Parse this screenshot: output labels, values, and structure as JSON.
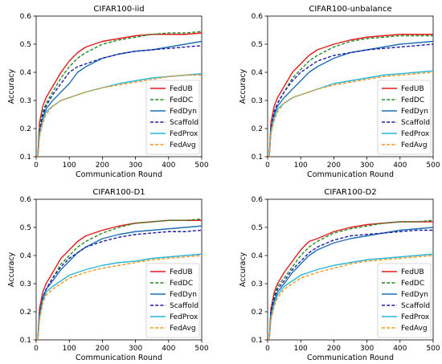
{
  "chart_data": [
    {
      "type": "line",
      "title": "CIFAR100-iid",
      "xlabel": "Communication Round",
      "ylabel": "Accuracy",
      "xlim": [
        0,
        500
      ],
      "ylim": [
        0.1,
        0.6
      ],
      "xticks": [
        "0",
        "100",
        "200",
        "300",
        "400",
        "500"
      ],
      "yticks": [
        "0.1",
        "0.2",
        "0.3",
        "0.4",
        "0.5",
        "0.6"
      ],
      "legend_position": "lower-right",
      "x": [
        5,
        10,
        20,
        30,
        50,
        75,
        100,
        125,
        150,
        200,
        250,
        300,
        350,
        400,
        450,
        500
      ],
      "series": [
        {
          "name": "FedUB",
          "color": "#e31a1c",
          "style": "solid",
          "values": [
            0.1,
            0.22,
            0.28,
            0.31,
            0.35,
            0.4,
            0.44,
            0.47,
            0.49,
            0.51,
            0.52,
            0.53,
            0.535,
            0.535,
            0.535,
            0.54
          ]
        },
        {
          "name": "FedDC",
          "color": "#238b23",
          "style": "dashed",
          "values": [
            0.1,
            0.2,
            0.26,
            0.29,
            0.33,
            0.38,
            0.42,
            0.45,
            0.47,
            0.5,
            0.515,
            0.525,
            0.535,
            0.54,
            0.54,
            0.545
          ]
        },
        {
          "name": "FedDyn",
          "color": "#1f6fb4",
          "style": "solid",
          "values": [
            0.1,
            0.18,
            0.24,
            0.27,
            0.3,
            0.33,
            0.36,
            0.4,
            0.42,
            0.45,
            0.465,
            0.475,
            0.48,
            0.49,
            0.5,
            0.51
          ]
        },
        {
          "name": "Scaffold",
          "color": "#1a1aa6",
          "style": "dashed",
          "values": [
            0.1,
            0.19,
            0.25,
            0.28,
            0.32,
            0.36,
            0.4,
            0.42,
            0.43,
            0.45,
            0.465,
            0.475,
            0.48,
            0.485,
            0.49,
            0.495
          ]
        },
        {
          "name": "FedProx",
          "color": "#29b6d8",
          "style": "solid",
          "values": [
            0.1,
            0.18,
            0.23,
            0.26,
            0.28,
            0.3,
            0.31,
            0.32,
            0.33,
            0.345,
            0.36,
            0.37,
            0.38,
            0.385,
            0.39,
            0.395
          ]
        },
        {
          "name": "FedAvg",
          "color": "#f5961e",
          "style": "dashed",
          "values": [
            0.1,
            0.17,
            0.22,
            0.25,
            0.28,
            0.3,
            0.31,
            0.32,
            0.33,
            0.345,
            0.355,
            0.365,
            0.375,
            0.385,
            0.39,
            0.39
          ]
        }
      ]
    },
    {
      "type": "line",
      "title": "CIFAR100-unbalance",
      "xlabel": "Communication Round",
      "ylabel": "Accuracy",
      "xlim": [
        0,
        500
      ],
      "ylim": [
        0.1,
        0.6
      ],
      "xticks": [
        "0",
        "100",
        "200",
        "300",
        "400",
        "500"
      ],
      "yticks": [
        "0.1",
        "0.2",
        "0.3",
        "0.4",
        "0.5",
        "0.6"
      ],
      "legend_position": "lower-right",
      "x": [
        5,
        10,
        20,
        30,
        50,
        75,
        100,
        125,
        150,
        200,
        250,
        300,
        350,
        400,
        450,
        500
      ],
      "series": [
        {
          "name": "FedUB",
          "color": "#e31a1c",
          "style": "solid",
          "values": [
            0.1,
            0.22,
            0.28,
            0.31,
            0.35,
            0.4,
            0.43,
            0.46,
            0.48,
            0.5,
            0.515,
            0.525,
            0.53,
            0.535,
            0.535,
            0.535
          ]
        },
        {
          "name": "FedDC",
          "color": "#238b23",
          "style": "dashed",
          "values": [
            0.1,
            0.2,
            0.26,
            0.29,
            0.33,
            0.38,
            0.41,
            0.44,
            0.46,
            0.49,
            0.51,
            0.52,
            0.525,
            0.53,
            0.53,
            0.53
          ]
        },
        {
          "name": "FedDyn",
          "color": "#1f6fb4",
          "style": "solid",
          "values": [
            0.1,
            0.19,
            0.25,
            0.28,
            0.31,
            0.34,
            0.37,
            0.4,
            0.42,
            0.45,
            0.47,
            0.48,
            0.49,
            0.5,
            0.505,
            0.51
          ]
        },
        {
          "name": "Scaffold",
          "color": "#1a1aa6",
          "style": "dashed",
          "values": [
            0.1,
            0.2,
            0.26,
            0.29,
            0.33,
            0.37,
            0.4,
            0.42,
            0.44,
            0.46,
            0.47,
            0.48,
            0.485,
            0.49,
            0.495,
            0.5
          ]
        },
        {
          "name": "FedProx",
          "color": "#29b6d8",
          "style": "solid",
          "values": [
            0.1,
            0.19,
            0.24,
            0.27,
            0.29,
            0.31,
            0.32,
            0.33,
            0.34,
            0.36,
            0.37,
            0.38,
            0.39,
            0.395,
            0.4,
            0.405
          ]
        },
        {
          "name": "FedAvg",
          "color": "#f5961e",
          "style": "dashed",
          "values": [
            0.1,
            0.18,
            0.23,
            0.26,
            0.29,
            0.31,
            0.32,
            0.33,
            0.34,
            0.355,
            0.365,
            0.375,
            0.385,
            0.39,
            0.395,
            0.4
          ]
        }
      ]
    },
    {
      "type": "line",
      "title": "CIFAR100-D1",
      "xlabel": "Communication Round",
      "ylabel": "Accuracy",
      "xlim": [
        0,
        500
      ],
      "ylim": [
        0.1,
        0.6
      ],
      "xticks": [
        "0",
        "100",
        "200",
        "300",
        "400",
        "500"
      ],
      "yticks": [
        "0.1",
        "0.2",
        "0.3",
        "0.4",
        "0.5",
        "0.6"
      ],
      "legend_position": "lower-right",
      "x": [
        5,
        10,
        20,
        30,
        50,
        75,
        100,
        125,
        150,
        200,
        250,
        300,
        350,
        400,
        450,
        500
      ],
      "series": [
        {
          "name": "FedUB",
          "color": "#e31a1c",
          "style": "solid",
          "values": [
            0.1,
            0.21,
            0.27,
            0.3,
            0.34,
            0.39,
            0.42,
            0.45,
            0.47,
            0.49,
            0.505,
            0.515,
            0.52,
            0.525,
            0.525,
            0.525
          ]
        },
        {
          "name": "FedDC",
          "color": "#238b23",
          "style": "dashed",
          "values": [
            0.1,
            0.19,
            0.25,
            0.28,
            0.32,
            0.37,
            0.4,
            0.43,
            0.45,
            0.48,
            0.5,
            0.515,
            0.52,
            0.525,
            0.525,
            0.53
          ]
        },
        {
          "name": "FedDyn",
          "color": "#1f6fb4",
          "style": "solid",
          "values": [
            0.1,
            0.19,
            0.25,
            0.28,
            0.31,
            0.35,
            0.38,
            0.41,
            0.43,
            0.46,
            0.475,
            0.485,
            0.49,
            0.495,
            0.5,
            0.505
          ]
        },
        {
          "name": "Scaffold",
          "color": "#1a1aa6",
          "style": "dashed",
          "values": [
            0.1,
            0.19,
            0.25,
            0.28,
            0.32,
            0.36,
            0.39,
            0.41,
            0.43,
            0.45,
            0.465,
            0.475,
            0.48,
            0.485,
            0.485,
            0.49
          ]
        },
        {
          "name": "FedProx",
          "color": "#29b6d8",
          "style": "solid",
          "values": [
            0.1,
            0.18,
            0.24,
            0.27,
            0.29,
            0.31,
            0.33,
            0.34,
            0.35,
            0.365,
            0.375,
            0.38,
            0.39,
            0.395,
            0.4,
            0.405
          ]
        },
        {
          "name": "FedAvg",
          "color": "#f5961e",
          "style": "dashed",
          "values": [
            0.1,
            0.17,
            0.23,
            0.26,
            0.28,
            0.3,
            0.32,
            0.33,
            0.34,
            0.355,
            0.365,
            0.375,
            0.385,
            0.39,
            0.395,
            0.4
          ]
        }
      ]
    },
    {
      "type": "line",
      "title": "CIFAR100-D2",
      "xlabel": "Communication Round",
      "ylabel": "Accuracy",
      "xlim": [
        0,
        500
      ],
      "ylim": [
        0.1,
        0.6
      ],
      "xticks": [
        "0",
        "100",
        "200",
        "300",
        "400",
        "500"
      ],
      "yticks": [
        "0.1",
        "0.2",
        "0.3",
        "0.4",
        "0.5",
        "0.6"
      ],
      "legend_position": "lower-right",
      "x": [
        5,
        10,
        20,
        30,
        50,
        75,
        100,
        125,
        150,
        200,
        250,
        300,
        350,
        400,
        450,
        500
      ],
      "series": [
        {
          "name": "FedUB",
          "color": "#e31a1c",
          "style": "solid",
          "values": [
            0.1,
            0.21,
            0.27,
            0.3,
            0.34,
            0.38,
            0.42,
            0.45,
            0.46,
            0.485,
            0.5,
            0.51,
            0.515,
            0.52,
            0.52,
            0.52
          ]
        },
        {
          "name": "FedDC",
          "color": "#238b23",
          "style": "dashed",
          "values": [
            0.1,
            0.2,
            0.26,
            0.29,
            0.32,
            0.36,
            0.4,
            0.43,
            0.45,
            0.48,
            0.495,
            0.505,
            0.515,
            0.52,
            0.52,
            0.525
          ]
        },
        {
          "name": "FedDyn",
          "color": "#1f6fb4",
          "style": "solid",
          "values": [
            0.1,
            0.19,
            0.24,
            0.27,
            0.3,
            0.34,
            0.37,
            0.4,
            0.42,
            0.445,
            0.46,
            0.47,
            0.48,
            0.49,
            0.495,
            0.5
          ]
        },
        {
          "name": "Scaffold",
          "color": "#1a1aa6",
          "style": "dashed",
          "values": [
            0.1,
            0.2,
            0.25,
            0.28,
            0.31,
            0.35,
            0.38,
            0.41,
            0.43,
            0.455,
            0.47,
            0.475,
            0.48,
            0.485,
            0.49,
            0.49
          ]
        },
        {
          "name": "FedProx",
          "color": "#29b6d8",
          "style": "solid",
          "values": [
            0.1,
            0.18,
            0.23,
            0.26,
            0.29,
            0.31,
            0.33,
            0.34,
            0.35,
            0.365,
            0.375,
            0.385,
            0.39,
            0.395,
            0.4,
            0.405
          ]
        },
        {
          "name": "FedAvg",
          "color": "#f5961e",
          "style": "dashed",
          "values": [
            0.1,
            0.17,
            0.22,
            0.25,
            0.28,
            0.3,
            0.32,
            0.33,
            0.34,
            0.355,
            0.37,
            0.38,
            0.385,
            0.39,
            0.395,
            0.4
          ]
        }
      ]
    }
  ]
}
